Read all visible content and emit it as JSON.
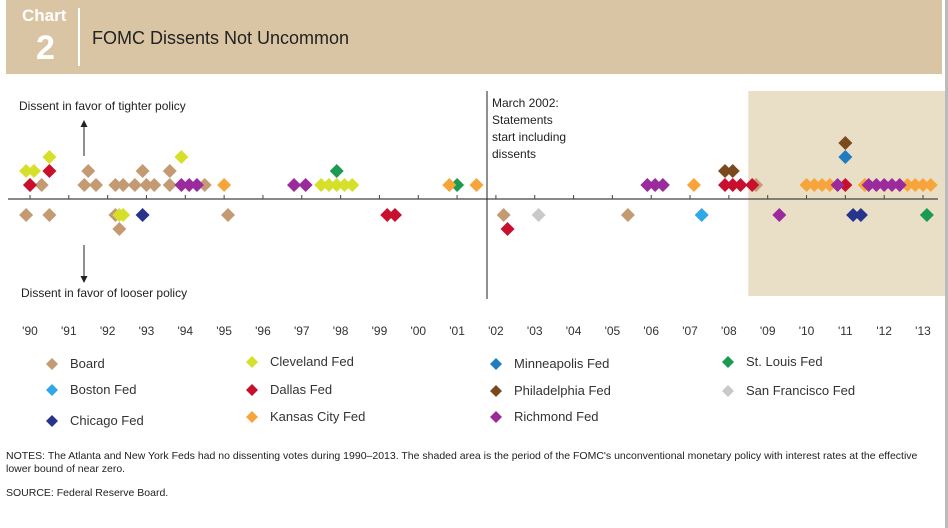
{
  "header": {
    "chart_word": "Chart",
    "chart_number": "2",
    "title": "FOMC Dissents Not Uncommon"
  },
  "chart_data": {
    "type": "scatter",
    "title": "FOMC Dissents Not Uncommon",
    "x_ticks": [
      "'90",
      "'91",
      "'92",
      "'93",
      "'94",
      "'95",
      "'96",
      "'97",
      "'98",
      "'99",
      "'00",
      "'01",
      "'02",
      "'03",
      "'04",
      "'05",
      "'06",
      "'07",
      "'08",
      "'09",
      "'10",
      "'11",
      "'12",
      "'13"
    ],
    "xlim": [
      1989.7,
      2013.6
    ],
    "annotations": {
      "tighter": "Dissent in favor of tighter policy",
      "looser": "Dissent in favor of looser policy",
      "march2002": [
        "March 2002:",
        "Statements",
        "start including",
        "dissents"
      ]
    },
    "shaded_period": [
      2008.5,
      2013.6
    ],
    "shaded_color": "#e9dfc7",
    "colors": {
      "Board": "#c49a72",
      "Cleveland Fed": "#d6e02a",
      "Minneapolis Fed": "#1f7cc2",
      "St. Louis Fed": "#1a9a52",
      "Boston Fed": "#2ea8ea",
      "Dallas Fed": "#c8102e",
      "Philadelphia Fed": "#7a4a1e",
      "San Francisco Fed": "#c9c9c9",
      "Chicago Fed": "#27348b",
      "Kansas City Fed": "#f7a53a",
      "Richmond Fed": "#9b2a9c"
    },
    "series": [
      {
        "name": "Board",
        "tighter": [
          [
            1990.0,
            1
          ],
          [
            1990.3,
            1
          ],
          [
            1991.4,
            1
          ],
          [
            1991.5,
            2
          ],
          [
            1991.7,
            1
          ],
          [
            1992.2,
            1
          ],
          [
            1992.4,
            1
          ],
          [
            1992.7,
            1
          ],
          [
            1992.9,
            2
          ],
          [
            1993.0,
            1
          ],
          [
            1993.2,
            1
          ],
          [
            1993.6,
            1
          ],
          [
            1993.6,
            2
          ],
          [
            1994.5,
            1
          ],
          [
            2008.7,
            1
          ]
        ],
        "looser": [
          [
            1989.9,
            1
          ],
          [
            1990.5,
            1
          ],
          [
            1992.2,
            1
          ],
          [
            1992.3,
            2
          ],
          [
            1995.1,
            1
          ],
          [
            2002.2,
            1
          ],
          [
            2005.4,
            1
          ]
        ]
      },
      {
        "name": "Cleveland Fed",
        "tighter": [
          [
            1989.9,
            2
          ],
          [
            1990.1,
            2
          ],
          [
            1990.5,
            3
          ],
          [
            1993.9,
            3
          ],
          [
            1997.5,
            1
          ],
          [
            1997.7,
            1
          ],
          [
            1997.9,
            1
          ],
          [
            1998.1,
            1
          ],
          [
            1998.3,
            1
          ]
        ],
        "looser": [
          [
            1992.3,
            1
          ],
          [
            1992.4,
            1
          ]
        ]
      },
      {
        "name": "Minneapolis Fed",
        "tighter": [
          [
            2011.0,
            3
          ]
        ],
        "looser": []
      },
      {
        "name": "St. Louis Fed",
        "tighter": [
          [
            1997.9,
            2
          ],
          [
            2001.0,
            1
          ]
        ],
        "looser": [
          [
            2013.1,
            1
          ]
        ]
      },
      {
        "name": "Boston Fed",
        "tighter": [],
        "looser": [
          [
            2007.3,
            1
          ]
        ]
      },
      {
        "name": "Dallas Fed",
        "tighter": [
          [
            1990.0,
            1
          ],
          [
            1990.5,
            2
          ],
          [
            2007.9,
            1
          ],
          [
            2008.1,
            1
          ],
          [
            2008.3,
            1
          ],
          [
            2008.6,
            1
          ],
          [
            2011.0,
            1
          ]
        ],
        "looser": [
          [
            1999.2,
            1
          ],
          [
            1999.4,
            1
          ],
          [
            2002.3,
            2
          ]
        ]
      },
      {
        "name": "Philadelphia Fed",
        "tighter": [
          [
            2007.9,
            2
          ],
          [
            2008.1,
            2
          ],
          [
            2011.0,
            4
          ]
        ],
        "looser": []
      },
      {
        "name": "San Francisco Fed",
        "tighter": [],
        "looser": [
          [
            2003.1,
            1
          ]
        ]
      },
      {
        "name": "Chicago Fed",
        "tighter": [],
        "looser": [
          [
            1992.9,
            1
          ],
          [
            2011.2,
            1
          ],
          [
            2011.4,
            1
          ]
        ]
      },
      {
        "name": "Kansas City Fed",
        "tighter": [
          [
            1995.0,
            1
          ],
          [
            2000.8,
            1
          ],
          [
            2001.5,
            1
          ],
          [
            2007.1,
            1
          ],
          [
            2010.0,
            1
          ],
          [
            2010.2,
            1
          ],
          [
            2010.4,
            1
          ],
          [
            2010.6,
            1
          ],
          [
            2011.5,
            1
          ],
          [
            2012.6,
            1
          ],
          [
            2012.8,
            1
          ],
          [
            2013.0,
            1
          ],
          [
            2013.2,
            1
          ]
        ],
        "looser": []
      },
      {
        "name": "Richmond Fed",
        "tighter": [
          [
            1993.9,
            1
          ],
          [
            1994.1,
            1
          ],
          [
            1994.3,
            1
          ],
          [
            1996.8,
            1
          ],
          [
            1997.1,
            1
          ],
          [
            2005.9,
            1
          ],
          [
            2006.1,
            1
          ],
          [
            2006.3,
            1
          ],
          [
            2010.8,
            1
          ],
          [
            2011.6,
            1
          ],
          [
            2011.8,
            1
          ],
          [
            2012.0,
            1
          ],
          [
            2012.2,
            1
          ],
          [
            2012.4,
            1
          ]
        ],
        "looser": [
          [
            2009.3,
            1
          ]
        ]
      }
    ]
  },
  "legend": [
    {
      "label": "Board",
      "color": "#c49a72"
    },
    {
      "label": "Cleveland Fed",
      "color": "#d6e02a"
    },
    {
      "label": "Minneapolis Fed",
      "color": "#1f7cc2"
    },
    {
      "label": "St. Louis Fed",
      "color": "#1a9a52"
    },
    {
      "label": "Boston Fed",
      "color": "#2ea8ea"
    },
    {
      "label": "Dallas Fed",
      "color": "#c8102e"
    },
    {
      "label": "Philadelphia Fed",
      "color": "#7a4a1e"
    },
    {
      "label": "San Francisco Fed",
      "color": "#c9c9c9"
    },
    {
      "label": "Chicago Fed",
      "color": "#27348b"
    },
    {
      "label": "Kansas City Fed",
      "color": "#f7a53a"
    },
    {
      "label": "Richmond Fed",
      "color": "#9b2a9c"
    }
  ],
  "notes": "NOTES: The Atlanta and New York Feds had no dissenting votes during 1990–2013. The shaded area is the period of the FOMC's unconventional monetary policy with interest rates at the effective lower bound of near zero.",
  "source": "SOURCE: Federal Reserve Board."
}
